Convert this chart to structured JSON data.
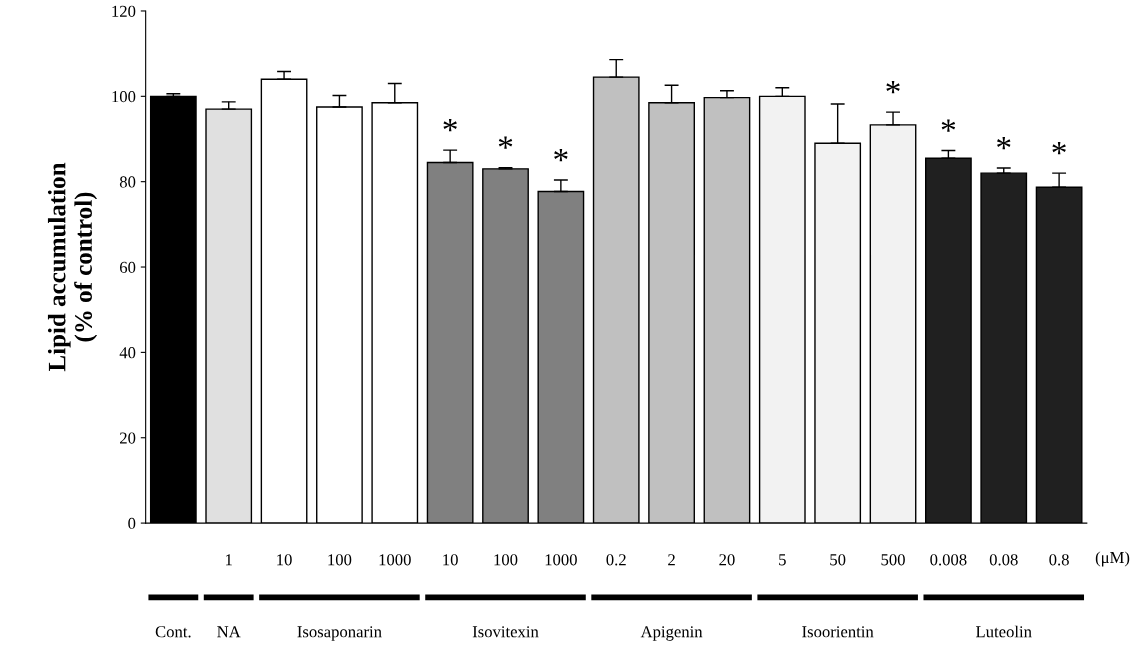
{
  "chart_data": {
    "type": "bar",
    "ylabel": "Lipid accumulation\n(% of control)",
    "categories": [
      null,
      "1",
      "10",
      "100",
      "1000",
      "10",
      "100",
      "1000",
      "0.2",
      "2",
      "20",
      "5",
      "50",
      "500",
      "0.008",
      "0.08",
      "0.8"
    ],
    "values": [
      100,
      97,
      104,
      97.5,
      98.5,
      84.5,
      83,
      77.7,
      104.5,
      98.5,
      99.7,
      100,
      89,
      93.3,
      85.5,
      82,
      78.7
    ],
    "errors": [
      [
        100,
        100.6
      ],
      [
        97,
        98.7
      ],
      [
        104,
        105.8
      ],
      [
        97.5,
        100.2
      ],
      [
        98.5,
        103
      ],
      [
        84.5,
        87.4
      ],
      [
        83,
        83.3
      ],
      [
        77.7,
        80.4
      ],
      [
        104.5,
        108.6
      ],
      [
        98.5,
        102.6
      ],
      [
        99.7,
        101.3
      ],
      [
        100,
        102
      ],
      [
        89,
        98.2
      ],
      [
        93.3,
        96.3
      ],
      [
        85.5,
        87.3
      ],
      [
        82,
        83.2
      ],
      [
        78.7,
        82
      ]
    ],
    "colors": [
      "#000000",
      "#e0e0e0",
      "#ffffff",
      "#ffffff",
      "#ffffff",
      "#808080",
      "#808080",
      "#808080",
      "#c0c0c0",
      "#c0c0c0",
      "#c0c0c0",
      "#f2f2f2",
      "#f2f2f2",
      "#f2f2f2",
      "#202020",
      "#202020",
      "#202020"
    ],
    "value_labels": [
      null,
      null,
      null,
      null,
      null,
      "*",
      "*",
      "*",
      null,
      null,
      null,
      null,
      null,
      "*",
      "*",
      "*",
      "*"
    ],
    "ylim": [
      0,
      120
    ],
    "yticks": [
      0,
      20,
      40,
      60,
      80,
      100,
      120
    ],
    "grid": false,
    "legend": false,
    "annotations": [
      "Cont.",
      "NA",
      "Isosaponarin",
      "Isovitexin",
      "Apigenin",
      "Isoorientin",
      "Luteolin",
      "(μM)"
    ]
  }
}
